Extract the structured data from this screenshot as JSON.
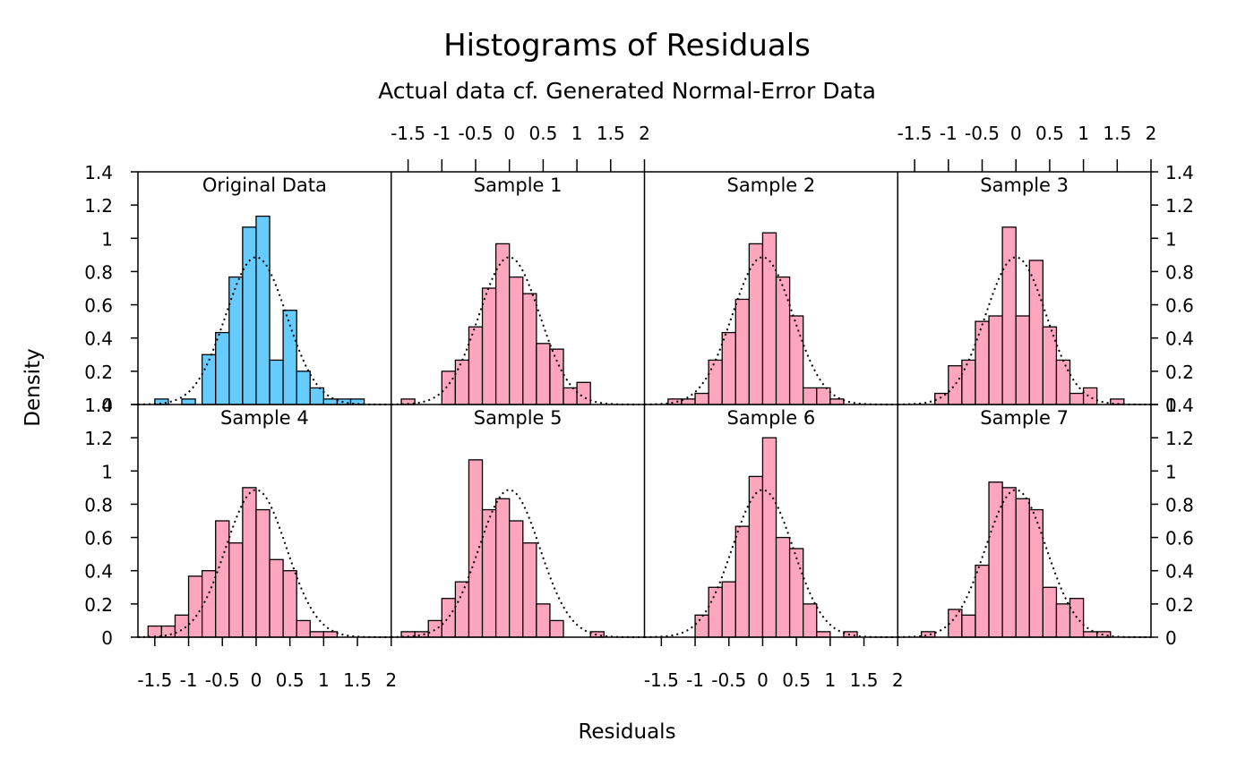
{
  "chart_data": {
    "type": "bar",
    "title": "Histograms of Residuals",
    "subtitle": "Actual data cf. Generated Normal-Error Data",
    "xlabel": "Residuals",
    "ylabel": "Density",
    "xlim": [
      -1.75,
      2.0
    ],
    "ylim": [
      0,
      1.4
    ],
    "bin_width": 0.2,
    "x_ticks": [
      -1.5,
      -1,
      -0.5,
      0,
      0.5,
      1,
      1.5,
      2
    ],
    "x_tick_labels": [
      "-1.5",
      "-1",
      "-0.5",
      "0",
      "0.5",
      "1",
      "1.5",
      "2"
    ],
    "y_ticks": [
      0,
      0.2,
      0.4,
      0.6,
      0.8,
      1,
      1.2,
      1.4
    ],
    "y_tick_labels": [
      "0",
      "0.2",
      "0.4",
      "0.6",
      "0.8",
      "1",
      "1.2",
      "1.4"
    ],
    "reference_curve": {
      "distribution": "normal",
      "mean": 0,
      "sd": 0.45,
      "style": "dotted"
    },
    "colors": {
      "original": "#66ccff",
      "sample": "#ffa6bf",
      "outline": "#000000"
    },
    "panels": [
      {
        "name": "Original Data",
        "bins": [
          {
            "x": -1.5,
            "y": 0.033
          },
          {
            "x": -1.1,
            "y": 0.033
          },
          {
            "x": -0.8,
            "y": 0.3
          },
          {
            "x": -0.6,
            "y": 0.433
          },
          {
            "x": -0.4,
            "y": 0.767
          },
          {
            "x": -0.2,
            "y": 1.067
          },
          {
            "x": 0.0,
            "y": 1.133
          },
          {
            "x": 0.2,
            "y": 0.267
          },
          {
            "x": 0.4,
            "y": 0.567
          },
          {
            "x": 0.6,
            "y": 0.2
          },
          {
            "x": 0.8,
            "y": 0.1
          },
          {
            "x": 1.0,
            "y": 0.033
          },
          {
            "x": 1.2,
            "y": 0.033
          },
          {
            "x": 1.4,
            "y": 0.033
          }
        ]
      },
      {
        "name": "Sample 1",
        "bins": [
          {
            "x": -1.6,
            "y": 0.033
          },
          {
            "x": -1.0,
            "y": 0.2
          },
          {
            "x": -0.8,
            "y": 0.267
          },
          {
            "x": -0.6,
            "y": 0.467
          },
          {
            "x": -0.4,
            "y": 0.7
          },
          {
            "x": -0.2,
            "y": 0.967
          },
          {
            "x": 0.0,
            "y": 0.767
          },
          {
            "x": 0.2,
            "y": 0.667
          },
          {
            "x": 0.4,
            "y": 0.367
          },
          {
            "x": 0.6,
            "y": 0.333
          },
          {
            "x": 0.8,
            "y": 0.1
          },
          {
            "x": 1.0,
            "y": 0.133
          }
        ]
      },
      {
        "name": "Sample 2",
        "bins": [
          {
            "x": -1.4,
            "y": 0.033
          },
          {
            "x": -1.2,
            "y": 0.033
          },
          {
            "x": -1.0,
            "y": 0.067
          },
          {
            "x": -0.8,
            "y": 0.267
          },
          {
            "x": -0.6,
            "y": 0.433
          },
          {
            "x": -0.4,
            "y": 0.633
          },
          {
            "x": -0.2,
            "y": 0.967
          },
          {
            "x": 0.0,
            "y": 1.033
          },
          {
            "x": 0.2,
            "y": 0.767
          },
          {
            "x": 0.4,
            "y": 0.533
          },
          {
            "x": 0.6,
            "y": 0.1
          },
          {
            "x": 0.8,
            "y": 0.1
          },
          {
            "x": 1.0,
            "y": 0.033
          }
        ]
      },
      {
        "name": "Sample 3",
        "bins": [
          {
            "x": -1.2,
            "y": 0.067
          },
          {
            "x": -1.0,
            "y": 0.233
          },
          {
            "x": -0.8,
            "y": 0.267
          },
          {
            "x": -0.6,
            "y": 0.5
          },
          {
            "x": -0.4,
            "y": 0.533
          },
          {
            "x": -0.2,
            "y": 1.067
          },
          {
            "x": 0.0,
            "y": 0.533
          },
          {
            "x": 0.2,
            "y": 0.867
          },
          {
            "x": 0.4,
            "y": 0.467
          },
          {
            "x": 0.6,
            "y": 0.267
          },
          {
            "x": 0.8,
            "y": 0.067
          },
          {
            "x": 1.0,
            "y": 0.1
          },
          {
            "x": 1.4,
            "y": 0.033
          }
        ]
      },
      {
        "name": "Sample 4",
        "bins": [
          {
            "x": -1.6,
            "y": 0.067
          },
          {
            "x": -1.4,
            "y": 0.067
          },
          {
            "x": -1.2,
            "y": 0.133
          },
          {
            "x": -1.0,
            "y": 0.367
          },
          {
            "x": -0.8,
            "y": 0.4
          },
          {
            "x": -0.6,
            "y": 0.7
          },
          {
            "x": -0.4,
            "y": 0.567
          },
          {
            "x": -0.2,
            "y": 0.9
          },
          {
            "x": 0.0,
            "y": 0.767
          },
          {
            "x": 0.2,
            "y": 0.467
          },
          {
            "x": 0.4,
            "y": 0.4
          },
          {
            "x": 0.6,
            "y": 0.1
          },
          {
            "x": 0.8,
            "y": 0.033
          },
          {
            "x": 1.0,
            "y": 0.033
          }
        ]
      },
      {
        "name": "Sample 5",
        "bins": [
          {
            "x": -1.6,
            "y": 0.033
          },
          {
            "x": -1.4,
            "y": 0.033
          },
          {
            "x": -1.2,
            "y": 0.1
          },
          {
            "x": -1.0,
            "y": 0.233
          },
          {
            "x": -0.8,
            "y": 0.333
          },
          {
            "x": -0.6,
            "y": 1.067
          },
          {
            "x": -0.4,
            "y": 0.767
          },
          {
            "x": -0.2,
            "y": 0.833
          },
          {
            "x": 0.0,
            "y": 0.7
          },
          {
            "x": 0.2,
            "y": 0.567
          },
          {
            "x": 0.4,
            "y": 0.2
          },
          {
            "x": 0.6,
            "y": 0.1
          },
          {
            "x": 1.2,
            "y": 0.033
          }
        ]
      },
      {
        "name": "Sample 6",
        "bins": [
          {
            "x": -1.0,
            "y": 0.133
          },
          {
            "x": -0.8,
            "y": 0.3
          },
          {
            "x": -0.6,
            "y": 0.333
          },
          {
            "x": -0.4,
            "y": 0.667
          },
          {
            "x": -0.2,
            "y": 0.967
          },
          {
            "x": 0.0,
            "y": 1.2
          },
          {
            "x": 0.2,
            "y": 0.6
          },
          {
            "x": 0.4,
            "y": 0.533
          },
          {
            "x": 0.6,
            "y": 0.2
          },
          {
            "x": 0.8,
            "y": 0.033
          },
          {
            "x": 1.2,
            "y": 0.033
          }
        ]
      },
      {
        "name": "Sample 7",
        "bins": [
          {
            "x": -1.4,
            "y": 0.033
          },
          {
            "x": -1.0,
            "y": 0.167
          },
          {
            "x": -0.8,
            "y": 0.133
          },
          {
            "x": -0.6,
            "y": 0.433
          },
          {
            "x": -0.4,
            "y": 0.933
          },
          {
            "x": -0.2,
            "y": 0.9
          },
          {
            "x": 0.0,
            "y": 0.833
          },
          {
            "x": 0.2,
            "y": 0.767
          },
          {
            "x": 0.4,
            "y": 0.3
          },
          {
            "x": 0.6,
            "y": 0.2
          },
          {
            "x": 0.8,
            "y": 0.233
          },
          {
            "x": 1.0,
            "y": 0.033
          },
          {
            "x": 1.2,
            "y": 0.033
          }
        ]
      }
    ]
  }
}
